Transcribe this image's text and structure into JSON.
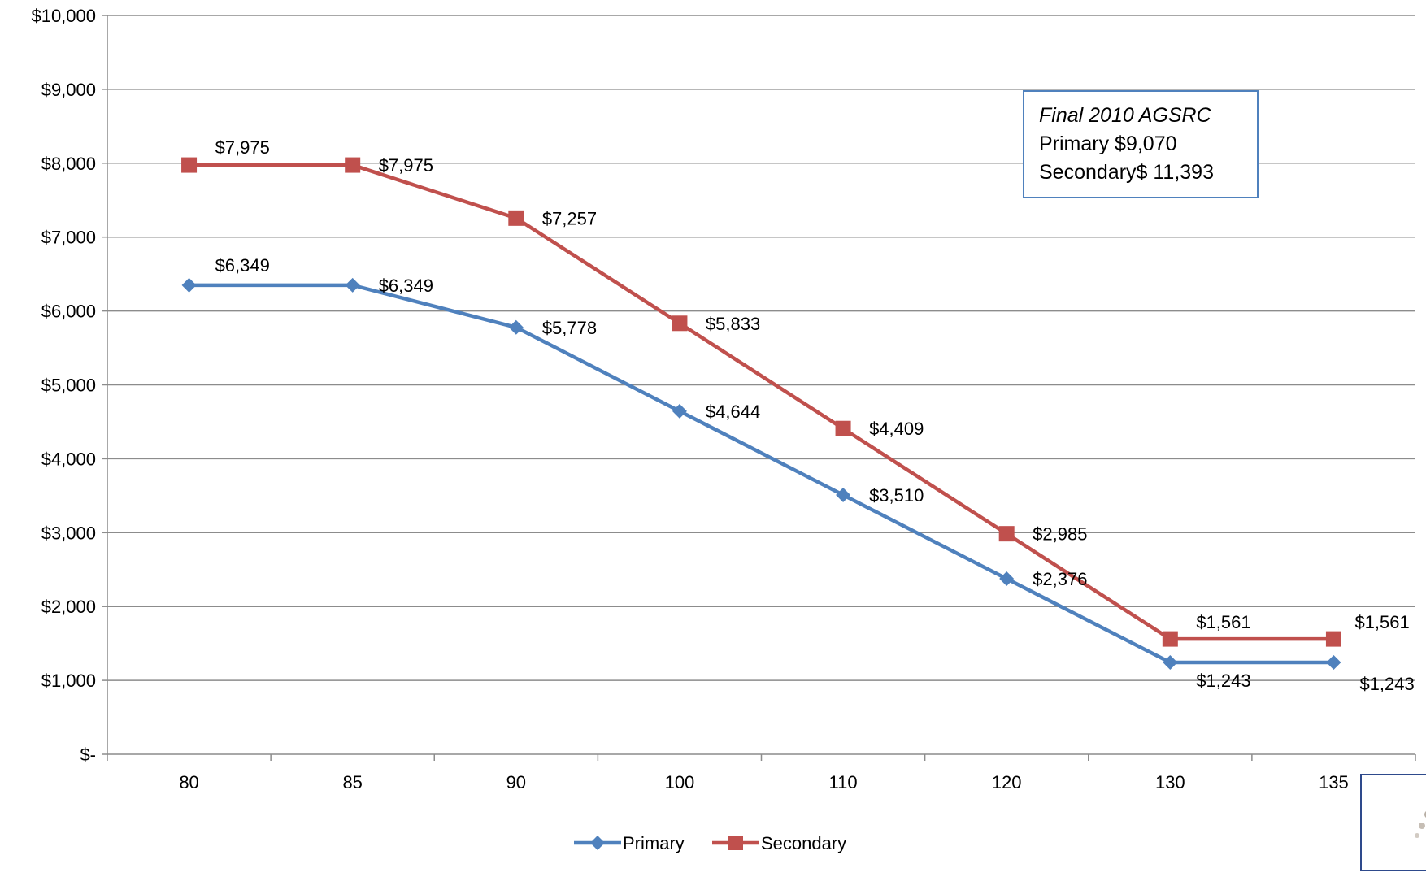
{
  "chart_data": {
    "type": "line",
    "categories": [
      "80",
      "85",
      "90",
      "100",
      "110",
      "120",
      "130",
      "135"
    ],
    "series": [
      {
        "name": "Primary",
        "color": "#4f81bd",
        "marker": "diamond",
        "values": [
          6349,
          6349,
          5778,
          4644,
          3510,
          2376,
          1243,
          1243
        ],
        "labels": [
          "$6,349",
          "$6,349",
          "$5,778",
          "$4,644",
          "$3,510",
          "$2,376",
          "$1,243",
          "$1,243"
        ]
      },
      {
        "name": "Secondary",
        "color": "#c0504d",
        "marker": "square",
        "values": [
          7975,
          7975,
          7257,
          5833,
          4409,
          2985,
          1561,
          1561
        ],
        "labels": [
          "$7,975",
          "$7,975",
          "$7,257",
          "$5,833",
          "$4,409",
          "$2,985",
          "$1,561",
          "$1,561"
        ]
      }
    ],
    "ylim": [
      0,
      10000
    ],
    "yticks": [
      0,
      1000,
      2000,
      3000,
      4000,
      5000,
      6000,
      7000,
      8000,
      9000,
      10000
    ],
    "ytick_labels": [
      "$-",
      "$1,000",
      "$2,000",
      "$3,000",
      "$4,000",
      "$5,000",
      "$6,000",
      "$7,000",
      "$8,000",
      "$9,000",
      "$10,000"
    ],
    "grid": true,
    "legend": "bottom",
    "title": "",
    "xlabel": "",
    "ylabel": ""
  },
  "note": {
    "title": "Final 2010 AGSRC",
    "line1": "Primary $9,070",
    "line2": "Secondary$ 11,393"
  }
}
